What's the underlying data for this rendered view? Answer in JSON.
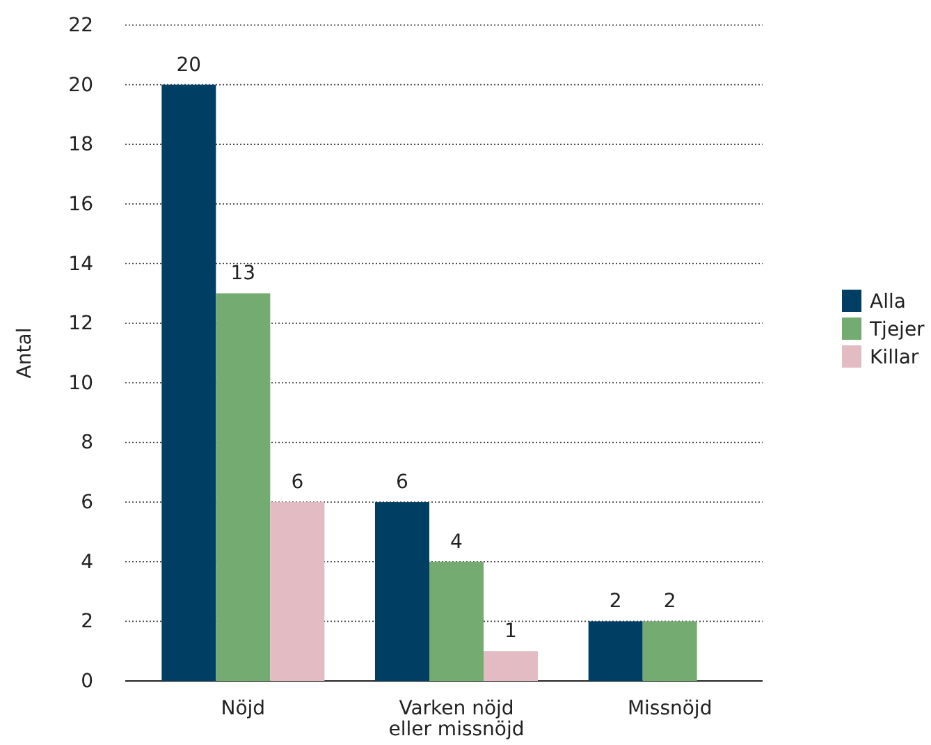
{
  "chart_data": {
    "type": "bar",
    "ylabel": "Antal",
    "categories": [
      "Nöjd",
      "Varken nöjd eller missnöjd",
      "Missnöjd"
    ],
    "series": [
      {
        "name": "Alla",
        "color": "#003f63",
        "values": [
          20,
          6,
          2
        ]
      },
      {
        "name": "Tjejer",
        "color": "#74ab70",
        "values": [
          13,
          4,
          2
        ]
      },
      {
        "name": "Killar",
        "color": "#e2bcc2",
        "values": [
          6,
          1,
          null
        ]
      }
    ],
    "ylim": [
      0,
      22
    ],
    "yticks": [
      0,
      2,
      4,
      6,
      8,
      10,
      12,
      14,
      16,
      18,
      20,
      22
    ],
    "grid": "y",
    "legend": "right",
    "data_labels": true
  }
}
